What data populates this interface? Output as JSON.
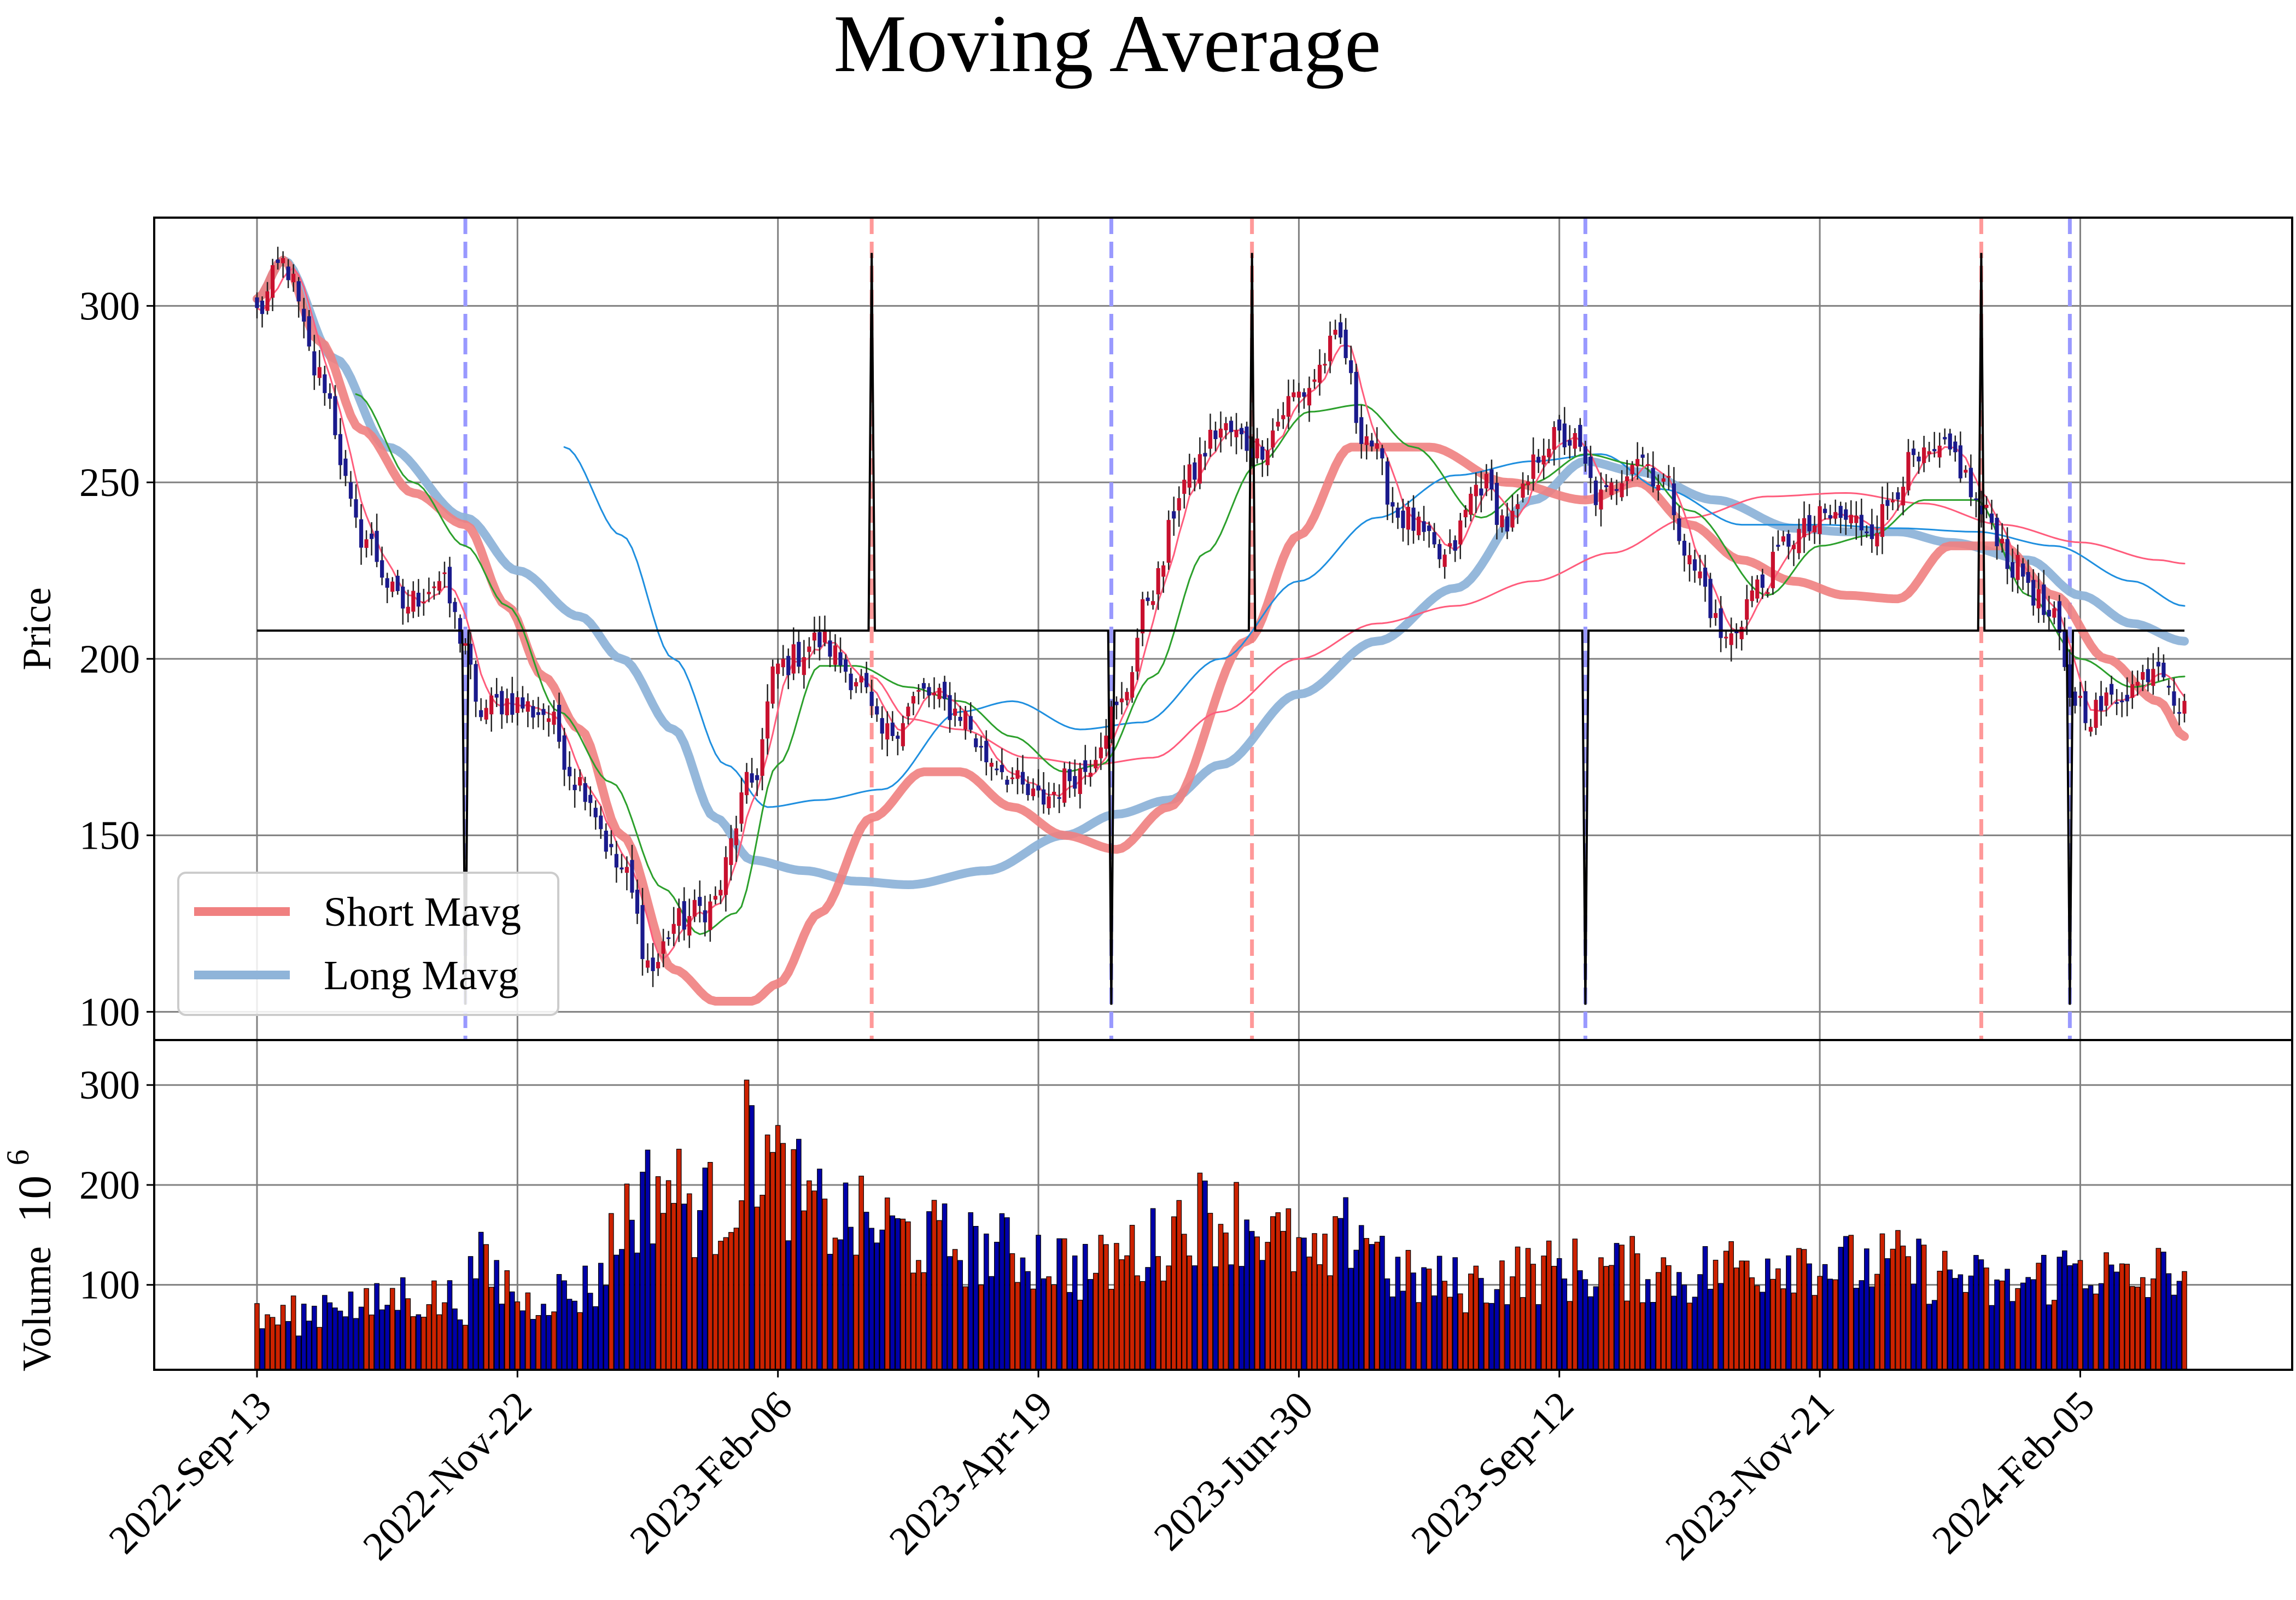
{
  "chart_data": {
    "type": "candlestick",
    "title": "Moving Average",
    "panels": {
      "price": {
        "ylabel": "Price",
        "ylim": [
          92,
          325
        ],
        "yticks": [
          100,
          150,
          200,
          250,
          300
        ],
        "grid": true
      },
      "volume": {
        "ylabel": "Volume",
        "ylabel_exponent": "10",
        "ylabel_exponent_power": "6",
        "ylim": [
          15,
          345
        ],
        "yticks": [
          100,
          200,
          300
        ],
        "grid": true
      }
    },
    "x_ticks": [
      "2022-Sep-13",
      "2022-Nov-22",
      "2023-Feb-06",
      "2023-Apr-19",
      "2023-Jun-30",
      "2023-Sep-12",
      "2023-Nov-21",
      "2024-Feb-05"
    ],
    "x_tick_index": [
      0,
      50,
      100,
      150,
      200,
      250,
      300,
      350
    ],
    "n_bars": 371,
    "legend": {
      "position": "lower left",
      "entries": [
        {
          "label": "Short Mavg",
          "color": "#F08080"
        },
        {
          "label": "Long Mavg",
          "color": "#8FB4D9"
        }
      ]
    },
    "colors": {
      "up_candle": "#c8102e",
      "down_candle": "#1a1a8c",
      "volume_up": "#cc2200",
      "volume_down": "#0000aa",
      "short_mavg": "#F08080",
      "long_mavg": "#8FB4D9",
      "green_ma": "#2ca02c",
      "blue_ma": "#1f8fdf",
      "thin_red_ma": "#ff5c7c",
      "buy_signal_line": "#9999ff",
      "sell_signal_line": "#ff9999",
      "signal_trace": "#000000"
    },
    "price_anchors": [
      [
        0,
        298
      ],
      [
        5,
        312
      ],
      [
        12,
        280
      ],
      [
        20,
        235
      ],
      [
        28,
        215
      ],
      [
        35,
        222
      ],
      [
        40,
        205
      ],
      [
        42,
        185
      ],
      [
        48,
        188
      ],
      [
        55,
        185
      ],
      [
        62,
        165
      ],
      [
        70,
        140
      ],
      [
        76,
        112
      ],
      [
        80,
        125
      ],
      [
        87,
        130
      ],
      [
        95,
        165
      ],
      [
        100,
        198
      ],
      [
        108,
        205
      ],
      [
        115,
        195
      ],
      [
        120,
        178
      ],
      [
        128,
        190
      ],
      [
        135,
        185
      ],
      [
        140,
        172
      ],
      [
        150,
        160
      ],
      [
        158,
        168
      ],
      [
        165,
        185
      ],
      [
        172,
        220
      ],
      [
        178,
        250
      ],
      [
        185,
        265
      ],
      [
        192,
        260
      ],
      [
        200,
        275
      ],
      [
        208,
        290
      ],
      [
        212,
        265
      ],
      [
        220,
        240
      ],
      [
        228,
        228
      ],
      [
        235,
        250
      ],
      [
        240,
        238
      ],
      [
        248,
        262
      ],
      [
        252,
        262
      ],
      [
        258,
        245
      ],
      [
        265,
        258
      ],
      [
        270,
        250
      ],
      [
        276,
        225
      ],
      [
        282,
        205
      ],
      [
        288,
        220
      ],
      [
        295,
        235
      ],
      [
        302,
        240
      ],
      [
        310,
        238
      ],
      [
        318,
        255
      ],
      [
        325,
        258
      ],
      [
        332,
        240
      ],
      [
        338,
        225
      ],
      [
        345,
        210
      ],
      [
        348,
        190
      ],
      [
        352,
        185
      ],
      [
        360,
        192
      ],
      [
        365,
        200
      ],
      [
        370,
        185
      ]
    ],
    "short_mavg_anchors": [
      [
        0,
        302
      ],
      [
        5,
        313
      ],
      [
        12,
        290
      ],
      [
        20,
        265
      ],
      [
        30,
        247
      ],
      [
        40,
        238
      ],
      [
        48,
        215
      ],
      [
        55,
        195
      ],
      [
        62,
        180
      ],
      [
        70,
        150
      ],
      [
        80,
        112
      ],
      [
        88,
        103
      ],
      [
        95,
        103
      ],
      [
        100,
        108
      ],
      [
        108,
        128
      ],
      [
        118,
        155
      ],
      [
        128,
        168
      ],
      [
        135,
        168
      ],
      [
        145,
        158
      ],
      [
        155,
        150
      ],
      [
        165,
        146
      ],
      [
        175,
        158
      ],
      [
        190,
        205
      ],
      [
        200,
        235
      ],
      [
        210,
        260
      ],
      [
        225,
        260
      ],
      [
        240,
        250
      ],
      [
        255,
        245
      ],
      [
        265,
        250
      ],
      [
        275,
        238
      ],
      [
        285,
        228
      ],
      [
        295,
        222
      ],
      [
        305,
        218
      ],
      [
        315,
        217
      ],
      [
        325,
        232
      ],
      [
        335,
        232
      ],
      [
        345,
        218
      ],
      [
        355,
        200
      ],
      [
        365,
        188
      ],
      [
        370,
        178
      ]
    ],
    "long_mavg_anchors": [
      [
        0,
        302
      ],
      [
        5,
        313
      ],
      [
        15,
        285
      ],
      [
        25,
        260
      ],
      [
        40,
        240
      ],
      [
        50,
        225
      ],
      [
        62,
        212
      ],
      [
        70,
        200
      ],
      [
        80,
        180
      ],
      [
        88,
        155
      ],
      [
        95,
        143
      ],
      [
        105,
        140
      ],
      [
        115,
        137
      ],
      [
        125,
        136
      ],
      [
        140,
        140
      ],
      [
        155,
        150
      ],
      [
        165,
        156
      ],
      [
        175,
        160
      ],
      [
        185,
        170
      ],
      [
        200,
        190
      ],
      [
        215,
        205
      ],
      [
        230,
        220
      ],
      [
        245,
        245
      ],
      [
        255,
        256
      ],
      [
        265,
        253
      ],
      [
        280,
        245
      ],
      [
        295,
        237
      ],
      [
        305,
        236
      ],
      [
        315,
        236
      ],
      [
        325,
        233
      ],
      [
        340,
        228
      ],
      [
        350,
        218
      ],
      [
        360,
        210
      ],
      [
        370,
        205
      ]
    ],
    "green_ma_anchors": [
      [
        19,
        275
      ],
      [
        30,
        250
      ],
      [
        40,
        232
      ],
      [
        48,
        215
      ],
      [
        58,
        185
      ],
      [
        68,
        165
      ],
      [
        78,
        135
      ],
      [
        85,
        122
      ],
      [
        92,
        128
      ],
      [
        100,
        170
      ],
      [
        108,
        198
      ],
      [
        115,
        198
      ],
      [
        125,
        192
      ],
      [
        135,
        188
      ],
      [
        145,
        178
      ],
      [
        155,
        168
      ],
      [
        162,
        170
      ],
      [
        172,
        195
      ],
      [
        182,
        230
      ],
      [
        192,
        255
      ],
      [
        202,
        270
      ],
      [
        212,
        272
      ],
      [
        222,
        260
      ],
      [
        235,
        240
      ],
      [
        245,
        250
      ],
      [
        255,
        258
      ],
      [
        265,
        255
      ],
      [
        275,
        242
      ],
      [
        290,
        218
      ],
      [
        300,
        232
      ],
      [
        310,
        235
      ],
      [
        320,
        245
      ],
      [
        330,
        245
      ],
      [
        340,
        218
      ],
      [
        350,
        200
      ],
      [
        360,
        192
      ],
      [
        370,
        195
      ]
    ],
    "blue_ma_anchors": [
      [
        59,
        260
      ],
      [
        70,
        235
      ],
      [
        80,
        200
      ],
      [
        90,
        170
      ],
      [
        98,
        158
      ],
      [
        108,
        160
      ],
      [
        120,
        163
      ],
      [
        135,
        185
      ],
      [
        145,
        188
      ],
      [
        158,
        180
      ],
      [
        170,
        182
      ],
      [
        185,
        200
      ],
      [
        200,
        222
      ],
      [
        215,
        240
      ],
      [
        230,
        252
      ],
      [
        245,
        256
      ],
      [
        258,
        258
      ],
      [
        270,
        248
      ],
      [
        285,
        238
      ],
      [
        300,
        238
      ],
      [
        315,
        237
      ],
      [
        330,
        236
      ],
      [
        345,
        232
      ],
      [
        360,
        222
      ],
      [
        370,
        215
      ]
    ],
    "thin_red_ma_anchors": [
      [
        118,
        195
      ],
      [
        125,
        183
      ],
      [
        135,
        180
      ],
      [
        148,
        172
      ],
      [
        160,
        170
      ],
      [
        172,
        172
      ],
      [
        185,
        185
      ],
      [
        200,
        200
      ],
      [
        215,
        210
      ],
      [
        230,
        215
      ],
      [
        245,
        222
      ],
      [
        260,
        230
      ],
      [
        275,
        240
      ],
      [
        290,
        246
      ],
      [
        305,
        247
      ],
      [
        320,
        244
      ],
      [
        335,
        238
      ],
      [
        350,
        233
      ],
      [
        365,
        228
      ],
      [
        370,
        227
      ]
    ],
    "signal_trace": {
      "baseline": 208,
      "spikes_up": [
        {
          "index": 118,
          "value": 315
        },
        {
          "index": 191,
          "value": 315
        },
        {
          "index": 331,
          "value": 315
        }
      ],
      "spikes_down": [
        {
          "index": 40,
          "value": 102
        },
        {
          "index": 164,
          "value": 102
        },
        {
          "index": 255,
          "value": 102
        },
        {
          "index": 348,
          "value": 102
        }
      ],
      "end_index": 370
    },
    "buy_lines": [
      40,
      164,
      255,
      348
    ],
    "sell_lines": [
      118,
      191,
      331
    ],
    "volume_anchors": [
      [
        0,
        65
      ],
      [
        10,
        70
      ],
      [
        15,
        90
      ],
      [
        20,
        75
      ],
      [
        28,
        90
      ],
      [
        35,
        85
      ],
      [
        40,
        85
      ],
      [
        42,
        120
      ],
      [
        48,
        100
      ],
      [
        52,
        80
      ],
      [
        55,
        95
      ],
      [
        60,
        90
      ],
      [
        65,
        100
      ],
      [
        68,
        140
      ],
      [
        72,
        180
      ],
      [
        78,
        200
      ],
      [
        84,
        180
      ],
      [
        88,
        175
      ],
      [
        92,
        200
      ],
      [
        95,
        250
      ],
      [
        100,
        210
      ],
      [
        108,
        170
      ],
      [
        118,
        160
      ],
      [
        128,
        145
      ],
      [
        140,
        135
      ],
      [
        150,
        130
      ],
      [
        160,
        115
      ],
      [
        170,
        135
      ],
      [
        180,
        170
      ],
      [
        190,
        165
      ],
      [
        198,
        140
      ],
      [
        204,
        118
      ],
      [
        212,
        160
      ],
      [
        220,
        105
      ],
      [
        232,
        100
      ],
      [
        242,
        112
      ],
      [
        252,
        115
      ],
      [
        265,
        115
      ],
      [
        275,
        110
      ],
      [
        285,
        120
      ],
      [
        295,
        130
      ],
      [
        305,
        118
      ],
      [
        315,
        120
      ],
      [
        325,
        110
      ],
      [
        335,
        95
      ],
      [
        345,
        110
      ],
      [
        350,
        120
      ],
      [
        360,
        100
      ],
      [
        370,
        120
      ]
    ]
  }
}
